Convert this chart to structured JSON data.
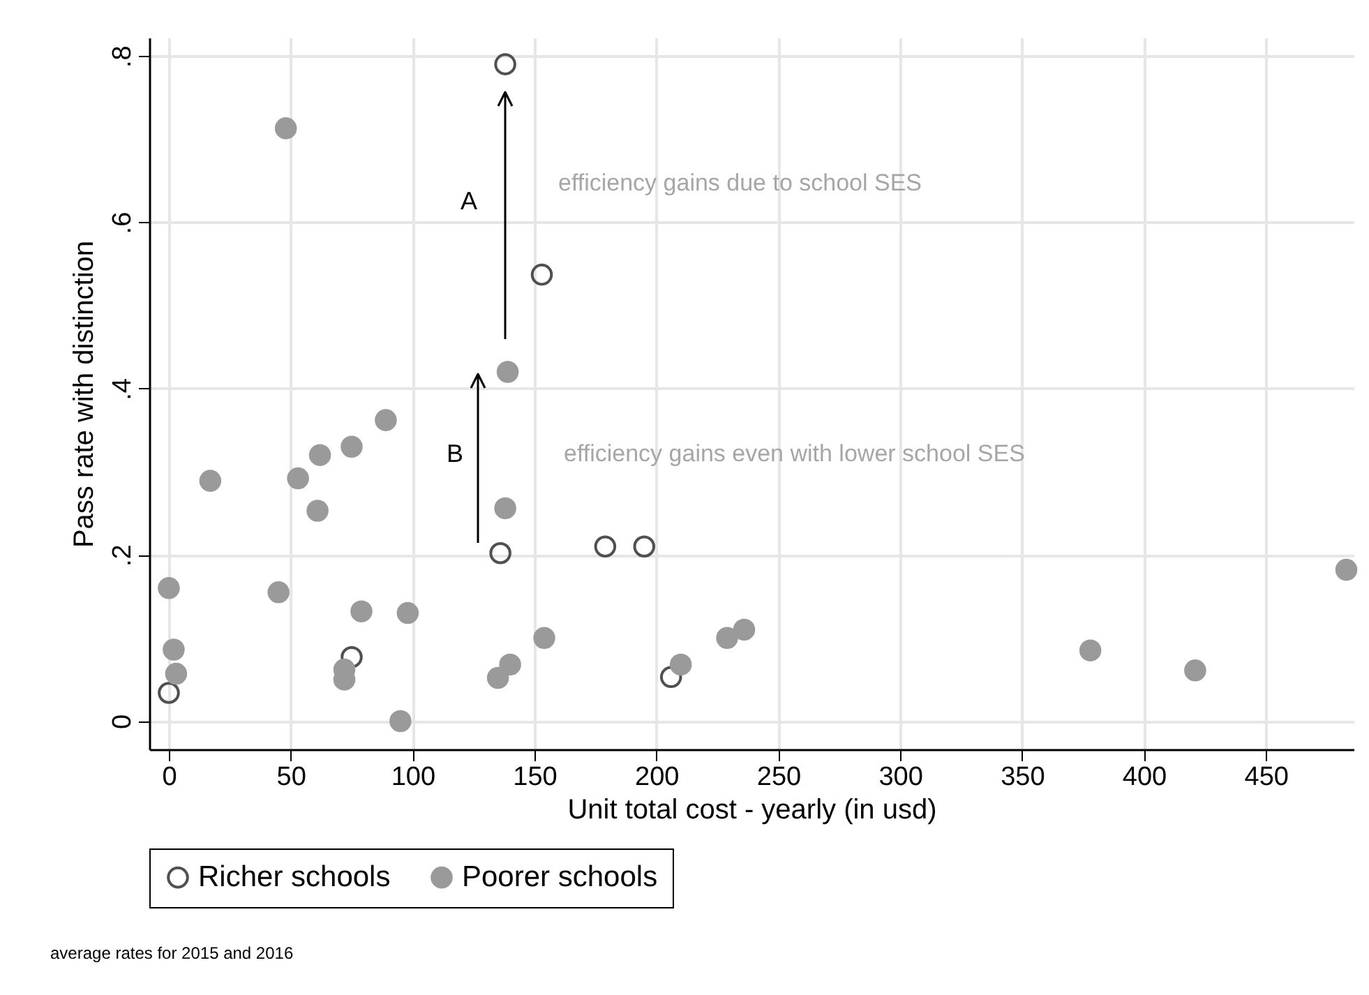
{
  "chart_data": {
    "type": "scatter",
    "xlabel": "Unit total cost - yearly (in usd)",
    "ylabel": "Pass rate with distinction",
    "xlim": [
      -8,
      486
    ],
    "xticks": [
      0,
      50,
      100,
      150,
      200,
      250,
      300,
      350,
      400,
      450
    ],
    "ylim": [
      -0.034,
      0.822
    ],
    "yticks": [
      0,
      {
        "value": 0.2,
        "label": ".2"
      },
      {
        "value": 0.4,
        "label": ".4"
      },
      {
        "value": 0.6,
        "label": ".6"
      },
      {
        "value": 0.8,
        "label": ".8"
      }
    ],
    "grid": true,
    "legend": "bottom",
    "marker": "circle",
    "series": [
      {
        "name": "Richer schools",
        "color": "#505050",
        "x": [
          138,
          153,
          136,
          179,
          195,
          75,
          0,
          206
        ],
        "values": [
          0.79,
          0.537,
          0.202,
          0.21,
          0.21,
          0.077,
          0.034,
          0.053
        ]
      },
      {
        "name": "Poorer schools",
        "color": "#9a9a9a",
        "x": [
          48,
          139,
          89,
          75,
          62,
          53,
          17,
          61,
          138,
          0,
          45,
          79,
          98,
          2,
          3,
          72,
          72,
          95,
          135,
          140,
          154,
          210,
          229,
          236,
          378,
          421,
          483
        ],
        "values": [
          0.713,
          0.42,
          0.362,
          0.33,
          0.32,
          0.292,
          0.289,
          0.253,
          0.256,
          0.16,
          0.155,
          0.132,
          0.13,
          0.086,
          0.057,
          0.062,
          0.05,
          0,
          0.052,
          0.068,
          0.1,
          0.068,
          0.1,
          0.11,
          0.085,
          0.061,
          0.182
        ]
      }
    ],
    "annotations": [
      "A",
      "B",
      "efficiency gains due to school SES",
      "efficiency gains even with lower school SES",
      "average rates for 2015 and 2016"
    ]
  }
}
